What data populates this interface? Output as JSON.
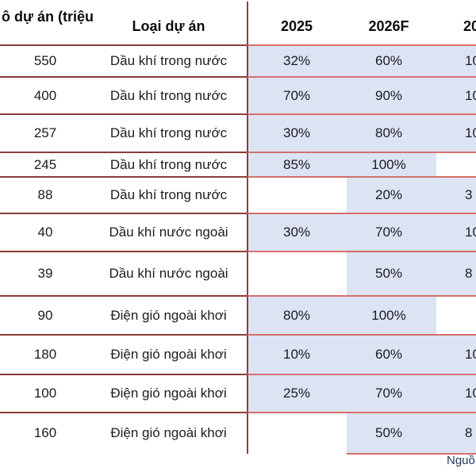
{
  "header": {
    "col_project_size": "ô dự án (triệu",
    "col_project_type": "Loại dự án",
    "col_2025": "2025",
    "col_2026": "2026F",
    "col_2027_partial": "20"
  },
  "rows": [
    {
      "size": "550",
      "type": "Dầu khí trong nước",
      "y2025": "32%",
      "y2026": "60%",
      "y2027": "10",
      "span": "2025-2027"
    },
    {
      "size": "400",
      "type": "Dầu khí trong nước",
      "y2025": "70%",
      "y2026": "90%",
      "y2027": "10",
      "span": "2025-2027"
    },
    {
      "size": "257",
      "type": "Dầu khí trong nước",
      "y2025": "30%",
      "y2026": "80%",
      "y2027": "10",
      "span": "2025-2027"
    },
    {
      "size": "245",
      "type": "Dầu khí trong nước",
      "y2025": "85%",
      "y2026": "100%",
      "y2027": "",
      "span": "2025-2026"
    },
    {
      "size": "88",
      "type": "Dầu khí trong nước",
      "y2025": "",
      "y2026": "20%",
      "y2027": "3",
      "span": "2026-2027"
    },
    {
      "size": "40",
      "type": "Dầu khí nước ngoài",
      "y2025": "30%",
      "y2026": "70%",
      "y2027": "10",
      "span": "2025-2027"
    },
    {
      "size": "39",
      "type": "Dầu khí nước ngoài",
      "y2025": "",
      "y2026": "50%",
      "y2027": "8",
      "span": "2026-2027"
    },
    {
      "size": "90",
      "type": "Điện gió ngoài khơi",
      "y2025": "80%",
      "y2026": "100%",
      "y2027": "",
      "span": "2025-2026"
    },
    {
      "size": "180",
      "type": "Điện gió ngoài khơi",
      "y2025": "10%",
      "y2026": "60%",
      "y2027": "10",
      "span": "2025-2027"
    },
    {
      "size": "100",
      "type": "Điện gió ngoài khơi",
      "y2025": "25%",
      "y2026": "70%",
      "y2027": "10",
      "span": "2025-2027"
    },
    {
      "size": "160",
      "type": "Điện gió ngoài khơi",
      "y2025": "",
      "y2026": "50%",
      "y2027": "8",
      "span": "2026-2027"
    }
  ],
  "footer": {
    "source_partial": "Nguồ"
  },
  "colors": {
    "bar_fill": "#dce3f2",
    "grid_pink": "#d4706d",
    "grid_maroon": "#8a3d3a",
    "footer_text": "#1f3864"
  }
}
